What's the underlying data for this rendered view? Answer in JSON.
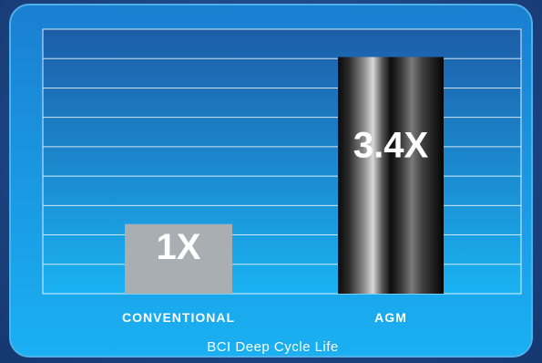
{
  "chart_data": {
    "type": "bar",
    "categories": [
      "CONVENTIONAL",
      "AGM"
    ],
    "values": [
      1,
      3.4
    ],
    "value_labels": [
      "1X",
      "3.4X"
    ],
    "xlabel": "BCI Deep Cycle Life",
    "ylabel": "",
    "ylim": [
      0,
      3.8
    ],
    "grid": true,
    "legend": "none",
    "colors": {
      "conventional": "#a8aeb1",
      "agm": "#1a1a1a",
      "plot_top": "#1c5ea8",
      "plot_bottom": "#1ab2f2",
      "gridline": "#ffffff",
      "frame": "#4fb0ea"
    }
  }
}
